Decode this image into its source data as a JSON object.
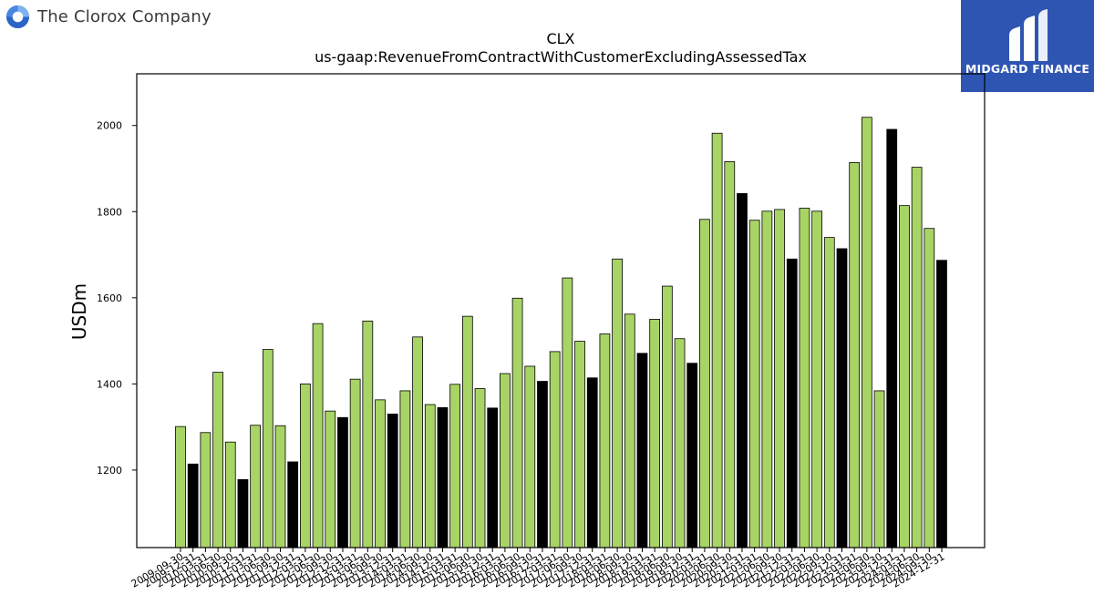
{
  "header": {
    "company_name": "The Clorox Company"
  },
  "brand": {
    "name": "MIDGARD FINANCE",
    "background": "#2f55b3"
  },
  "colors": {
    "bar_default": "#a8d466",
    "bar_highlight": "#000000"
  },
  "chart_data": {
    "type": "bar",
    "title": "CLX",
    "subtitle": "us-gaap:RevenueFromContractWithCustomerExcludingAssessedTax",
    "xlabel": "",
    "ylabel": "USDm",
    "ylim": [
      1020,
      2120
    ],
    "yticks": [
      1200,
      1400,
      1600,
      1800,
      2000
    ],
    "grid": false,
    "categories": [
      "2009-09-30",
      "2009-12-31",
      "2010-03-31",
      "2010-06-30",
      "2010-09-30",
      "2010-12-31",
      "2011-03-31",
      "2011-06-30",
      "2011-09-30",
      "2011-12-31",
      "2012-03-31",
      "2012-06-30",
      "2012-09-30",
      "2012-12-31",
      "2013-03-31",
      "2013-06-30",
      "2013-09-30",
      "2013-12-31",
      "2014-03-31",
      "2014-06-30",
      "2014-09-30",
      "2014-12-31",
      "2015-03-31",
      "2015-06-30",
      "2015-09-30",
      "2015-12-31",
      "2016-03-31",
      "2016-06-30",
      "2016-09-30",
      "2016-12-31",
      "2017-03-31",
      "2017-06-30",
      "2017-09-30",
      "2017-12-31",
      "2018-03-31",
      "2018-06-30",
      "2018-09-30",
      "2018-12-31",
      "2019-03-31",
      "2019-06-30",
      "2019-09-30",
      "2019-12-31",
      "2020-03-31",
      "2020-06-30",
      "2020-09-30",
      "2020-12-31",
      "2021-03-31",
      "2021-06-30",
      "2021-09-30",
      "2021-12-31",
      "2022-03-31",
      "2022-06-30",
      "2022-09-30",
      "2022-12-31",
      "2023-03-31",
      "2023-06-30",
      "2023-09-30",
      "2023-12-31",
      "2024-03-31",
      "2024-06-30",
      "2024-09-30",
      "2024-12-31"
    ],
    "values": [
      1301,
      1214,
      1287,
      1427,
      1265,
      1178,
      1304,
      1480,
      1303,
      1219,
      1400,
      1540,
      1337,
      1322,
      1411,
      1546,
      1363,
      1330,
      1384,
      1509,
      1352,
      1345,
      1399,
      1557,
      1389,
      1344,
      1424,
      1599,
      1441,
      1406,
      1475,
      1646,
      1499,
      1414,
      1516,
      1690,
      1562,
      1471,
      1550,
      1627,
      1505,
      1448,
      1782,
      1982,
      1916,
      1842,
      1780,
      1801,
      1805,
      1690,
      1808,
      1801,
      1740,
      1714,
      1914,
      2019,
      1384,
      1991,
      1814,
      1903,
      1761,
      1687
    ],
    "highlight_indices": [
      1,
      5,
      9,
      13,
      17,
      21,
      25,
      29,
      33,
      37,
      41,
      45,
      49,
      53,
      57,
      61
    ]
  }
}
